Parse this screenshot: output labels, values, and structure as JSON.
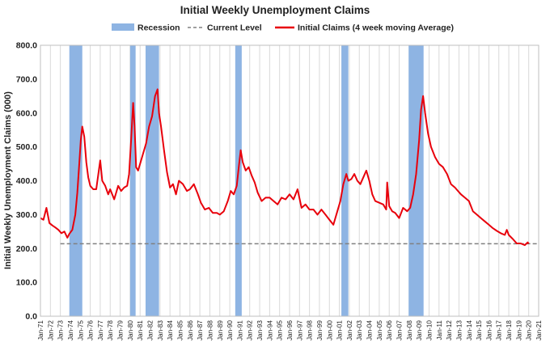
{
  "chart_data": {
    "type": "line",
    "title": "Initial Weekly Unemployment Claims",
    "ylabel": "Initial Weekly Unemployment Claims (000)",
    "xlabel": "",
    "ylim": [
      0,
      800
    ],
    "yticks": [
      "0.0",
      "100.0",
      "200.0",
      "300.0",
      "400.0",
      "500.0",
      "600.0",
      "700.0",
      "800.0"
    ],
    "xlim": [
      1971.0,
      2021.0
    ],
    "xticks": [
      "Jan-71",
      "Jan-72",
      "Jan-73",
      "Jan-74",
      "Jan-75",
      "Jan-76",
      "Jan-77",
      "Jan-78",
      "Jan-79",
      "Jan-80",
      "Jan-81",
      "Jan-82",
      "Jan-83",
      "Jan-84",
      "Jan-85",
      "Jan-86",
      "Jan-87",
      "Jan-88",
      "Jan-89",
      "Jan-90",
      "Jan-91",
      "Jan-92",
      "Jan-93",
      "Jan-94",
      "Jan-95",
      "Jan-96",
      "Jan-97",
      "Jan-98",
      "Jan-99",
      "Jan-00",
      "Jan-01",
      "Jan-02",
      "Jan-03",
      "Jan-04",
      "Jan-05",
      "Jan-06",
      "Jan-07",
      "Jan-08",
      "Jan-09",
      "Jan-10",
      "Jan-11",
      "Jan-12",
      "Jan-13",
      "Jan-14",
      "Jan-15",
      "Jan-16",
      "Jan-17",
      "Jan-18",
      "Jan-19",
      "Jan-20",
      "Jan-21"
    ],
    "grid": "vertical",
    "legend": {
      "position": "top",
      "entries": [
        "Recession",
        "Current Level",
        "Initial Claims (4 week moving Average)"
      ]
    },
    "colors": {
      "recession": "#8eb4e3",
      "claims": "#e8000b",
      "current": "#808080"
    },
    "recessions": [
      [
        1973.9,
        1975.2
      ],
      [
        1980.0,
        1980.55
      ],
      [
        1981.55,
        1982.9
      ],
      [
        1990.55,
        1991.2
      ],
      [
        2001.2,
        2001.9
      ],
      [
        2007.95,
        2009.45
      ]
    ],
    "current_level": 214,
    "series": [
      {
        "name": "Initial Claims (4 week moving Average)",
        "x": [
          1971.0,
          1971.3,
          1971.6,
          1971.9,
          1972.2,
          1972.5,
          1972.8,
          1973.1,
          1973.4,
          1973.7,
          1973.9,
          1974.2,
          1974.5,
          1974.7,
          1974.9,
          1975.05,
          1975.2,
          1975.4,
          1975.6,
          1975.8,
          1976.0,
          1976.3,
          1976.6,
          1977.0,
          1977.2,
          1977.5,
          1977.8,
          1978.0,
          1978.4,
          1978.8,
          1979.1,
          1979.4,
          1979.7,
          1979.9,
          1980.1,
          1980.3,
          1980.45,
          1980.6,
          1980.8,
          1981.0,
          1981.3,
          1981.6,
          1981.9,
          1982.2,
          1982.5,
          1982.75,
          1982.9,
          1983.1,
          1983.4,
          1983.7,
          1984.0,
          1984.3,
          1984.6,
          1984.9,
          1985.3,
          1985.7,
          1986.0,
          1986.4,
          1986.8,
          1987.1,
          1987.5,
          1987.9,
          1988.3,
          1988.7,
          1989.0,
          1989.4,
          1989.8,
          1990.1,
          1990.4,
          1990.7,
          1990.9,
          1991.1,
          1991.3,
          1991.6,
          1991.9,
          1992.2,
          1992.5,
          1992.8,
          1993.2,
          1993.6,
          1994.0,
          1994.4,
          1994.8,
          1995.2,
          1995.6,
          1996.0,
          1996.4,
          1996.8,
          1997.2,
          1997.6,
          1998.0,
          1998.4,
          1998.8,
          1999.2,
          1999.6,
          2000.0,
          2000.4,
          2000.8,
          2001.1,
          2001.4,
          2001.7,
          2001.9,
          2002.2,
          2002.5,
          2002.8,
          2003.1,
          2003.4,
          2003.7,
          2004.0,
          2004.3,
          2004.6,
          2005.0,
          2005.4,
          2005.7,
          2005.8,
          2006.0,
          2006.3,
          2006.6,
          2007.0,
          2007.4,
          2007.8,
          2008.1,
          2008.4,
          2008.7,
          2009.0,
          2009.2,
          2009.4,
          2009.6,
          2009.9,
          2010.2,
          2010.6,
          2011.0,
          2011.4,
          2011.8,
          2012.2,
          2012.6,
          2012.9,
          2013.2,
          2013.6,
          2014.0,
          2014.4,
          2014.8,
          2015.2,
          2015.6,
          2016.0,
          2016.4,
          2016.8,
          2017.2,
          2017.6,
          2017.8,
          2018.0,
          2018.4,
          2018.8,
          2019.2,
          2019.6,
          2019.9,
          2020.0
        ],
        "values": [
          290,
          285,
          320,
          275,
          268,
          262,
          255,
          245,
          250,
          232,
          243,
          255,
          300,
          365,
          450,
          520,
          560,
          530,
          455,
          410,
          385,
          375,
          375,
          460,
          400,
          385,
          360,
          375,
          345,
          385,
          370,
          380,
          385,
          420,
          520,
          630,
          560,
          440,
          430,
          450,
          480,
          510,
          560,
          590,
          650,
          670,
          600,
          560,
          490,
          425,
          380,
          390,
          360,
          400,
          390,
          370,
          375,
          390,
          360,
          335,
          315,
          320,
          305,
          305,
          300,
          310,
          340,
          370,
          360,
          385,
          440,
          490,
          455,
          430,
          440,
          415,
          395,
          365,
          340,
          350,
          350,
          340,
          330,
          350,
          345,
          360,
          345,
          375,
          320,
          330,
          315,
          315,
          300,
          315,
          300,
          285,
          270,
          310,
          340,
          390,
          420,
          400,
          405,
          420,
          400,
          390,
          410,
          430,
          400,
          360,
          340,
          335,
          330,
          315,
          395,
          325,
          310,
          305,
          290,
          320,
          310,
          320,
          360,
          420,
          520,
          610,
          650,
          600,
          540,
          500,
          470,
          450,
          440,
          420,
          390,
          380,
          370,
          360,
          350,
          340,
          310,
          300,
          290,
          280,
          270,
          260,
          252,
          245,
          240,
          255,
          240,
          228,
          215,
          215,
          210,
          218,
          214
        ]
      }
    ]
  }
}
